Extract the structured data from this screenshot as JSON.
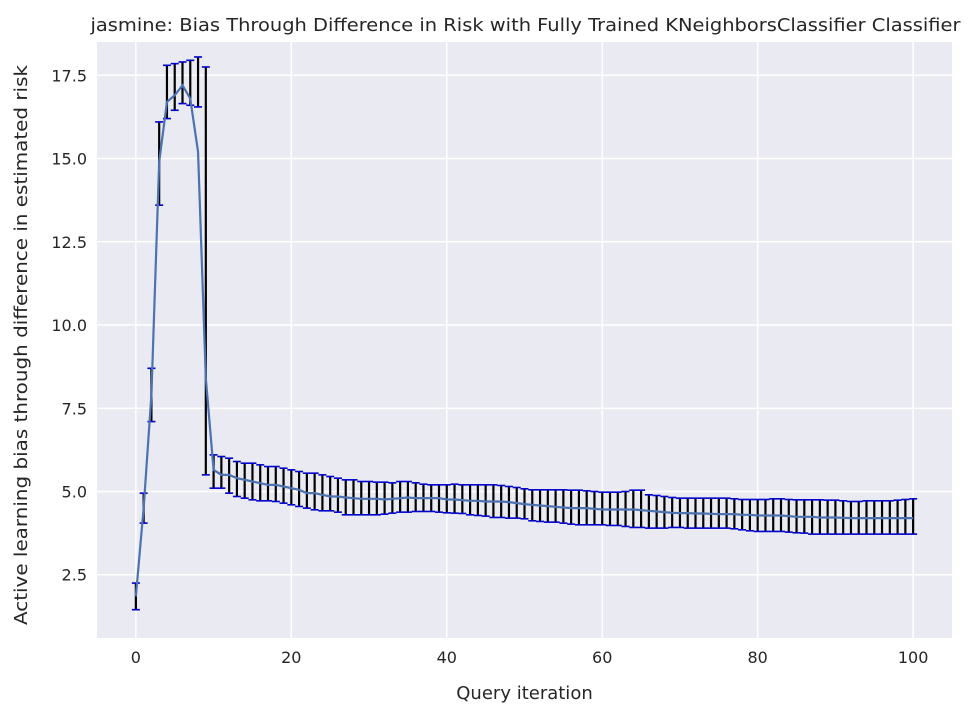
{
  "chart_data": {
    "type": "line",
    "title": "jasmine: Bias Through Difference in Risk with Fully Trained KNeighborsClassifier Classifier",
    "xlabel": "Query iteration",
    "ylabel": "Active learning bias through difference in estimated risk",
    "xlim": [
      -5,
      105
    ],
    "ylim": [
      0.6,
      18.5
    ],
    "xticks": [
      0,
      20,
      40,
      60,
      80,
      100
    ],
    "yticks": [
      2.5,
      5.0,
      7.5,
      10.0,
      12.5,
      15.0,
      17.5
    ],
    "ytick_labels": [
      "2.5",
      "5.0",
      "7.5",
      "10.0",
      "12.5",
      "15.0",
      "17.5"
    ],
    "xtick_labels": [
      "0",
      "20",
      "40",
      "60",
      "80",
      "100"
    ],
    "grid": true,
    "series": [
      {
        "line_color": "#4c72b0",
        "errorbar_color": "#000000",
        "cap_color": "#0000cc",
        "x": [
          0,
          1,
          2,
          3,
          4,
          5,
          6,
          7,
          8,
          9,
          10,
          11,
          12,
          13,
          14,
          15,
          16,
          17,
          18,
          19,
          20,
          21,
          22,
          23,
          24,
          25,
          26,
          27,
          28,
          29,
          30,
          31,
          32,
          33,
          34,
          35,
          36,
          37,
          38,
          39,
          40,
          41,
          42,
          43,
          44,
          45,
          46,
          47,
          48,
          49,
          50,
          51,
          52,
          53,
          54,
          55,
          56,
          57,
          58,
          59,
          60,
          61,
          62,
          63,
          64,
          65,
          66,
          67,
          68,
          69,
          70,
          71,
          72,
          73,
          74,
          75,
          76,
          77,
          78,
          79,
          80,
          81,
          82,
          83,
          84,
          85,
          86,
          87,
          88,
          89,
          90,
          91,
          92,
          93,
          94,
          95,
          96,
          97,
          98,
          99,
          100
        ],
        "y": [
          1.85,
          4.5,
          7.9,
          14.9,
          16.7,
          16.9,
          17.2,
          16.8,
          15.2,
          8.4,
          5.65,
          5.5,
          5.5,
          5.4,
          5.35,
          5.3,
          5.25,
          5.2,
          5.2,
          5.15,
          5.1,
          5.05,
          4.95,
          4.95,
          4.9,
          4.85,
          4.85,
          4.82,
          4.8,
          4.78,
          4.78,
          4.78,
          4.76,
          4.78,
          4.8,
          4.82,
          4.8,
          4.8,
          4.8,
          4.8,
          4.76,
          4.76,
          4.74,
          4.72,
          4.72,
          4.7,
          4.7,
          4.7,
          4.68,
          4.65,
          4.62,
          4.6,
          4.58,
          4.56,
          4.54,
          4.52,
          4.5,
          4.5,
          4.5,
          4.48,
          4.46,
          4.46,
          4.46,
          4.46,
          4.46,
          4.44,
          4.42,
          4.4,
          4.38,
          4.36,
          4.35,
          4.35,
          4.34,
          4.34,
          4.33,
          4.32,
          4.32,
          4.32,
          4.3,
          4.3,
          4.28,
          4.28,
          4.28,
          4.28,
          4.26,
          4.24,
          4.24,
          4.24,
          4.22,
          4.22,
          4.22,
          4.21,
          4.2,
          4.2,
          4.2,
          4.2,
          4.2,
          4.2,
          4.2,
          4.2,
          4.2
        ],
        "lower": [
          1.45,
          4.05,
          7.1,
          13.6,
          16.2,
          16.45,
          16.65,
          16.6,
          16.55,
          5.5,
          5.1,
          5.1,
          4.95,
          4.85,
          4.8,
          4.75,
          4.72,
          4.72,
          4.7,
          4.65,
          4.6,
          4.55,
          4.5,
          4.45,
          4.42,
          4.42,
          4.38,
          4.3,
          4.3,
          4.3,
          4.3,
          4.3,
          4.32,
          4.35,
          4.38,
          4.38,
          4.4,
          4.4,
          4.4,
          4.38,
          4.36,
          4.35,
          4.34,
          4.3,
          4.28,
          4.26,
          4.22,
          4.22,
          4.2,
          4.2,
          4.18,
          4.12,
          4.1,
          4.08,
          4.08,
          4.05,
          4.02,
          4.0,
          4.0,
          4.0,
          4.0,
          3.98,
          3.98,
          3.95,
          3.92,
          3.92,
          3.9,
          3.9,
          3.9,
          3.92,
          3.92,
          3.9,
          3.9,
          3.9,
          3.9,
          3.9,
          3.9,
          3.88,
          3.85,
          3.82,
          3.8,
          3.8,
          3.8,
          3.8,
          3.78,
          3.76,
          3.75,
          3.72,
          3.72,
          3.72,
          3.72,
          3.72,
          3.72,
          3.72,
          3.72,
          3.72,
          3.72,
          3.72,
          3.72,
          3.72,
          3.72
        ],
        "upper": [
          2.25,
          4.95,
          8.7,
          16.1,
          17.8,
          17.85,
          17.9,
          17.95,
          18.05,
          17.75,
          6.1,
          6.05,
          6.0,
          5.9,
          5.85,
          5.85,
          5.8,
          5.75,
          5.75,
          5.7,
          5.65,
          5.6,
          5.55,
          5.55,
          5.5,
          5.45,
          5.4,
          5.35,
          5.35,
          5.3,
          5.3,
          5.28,
          5.28,
          5.26,
          5.3,
          5.3,
          5.26,
          5.22,
          5.2,
          5.2,
          5.2,
          5.22,
          5.2,
          5.2,
          5.2,
          5.2,
          5.2,
          5.18,
          5.15,
          5.12,
          5.08,
          5.05,
          5.05,
          5.05,
          5.05,
          5.05,
          5.04,
          5.04,
          5.02,
          5.0,
          4.98,
          4.98,
          4.98,
          5.0,
          5.04,
          5.04,
          4.9,
          4.88,
          4.85,
          4.82,
          4.8,
          4.8,
          4.8,
          4.8,
          4.8,
          4.8,
          4.8,
          4.78,
          4.76,
          4.76,
          4.76,
          4.76,
          4.78,
          4.78,
          4.76,
          4.75,
          4.75,
          4.75,
          4.75,
          4.74,
          4.74,
          4.72,
          4.7,
          4.7,
          4.72,
          4.72,
          4.72,
          4.72,
          4.74,
          4.76,
          4.78
        ]
      }
    ]
  },
  "colors": {
    "plot_background": "#eaeaf2",
    "grid": "#ffffff",
    "text": "#262626"
  }
}
